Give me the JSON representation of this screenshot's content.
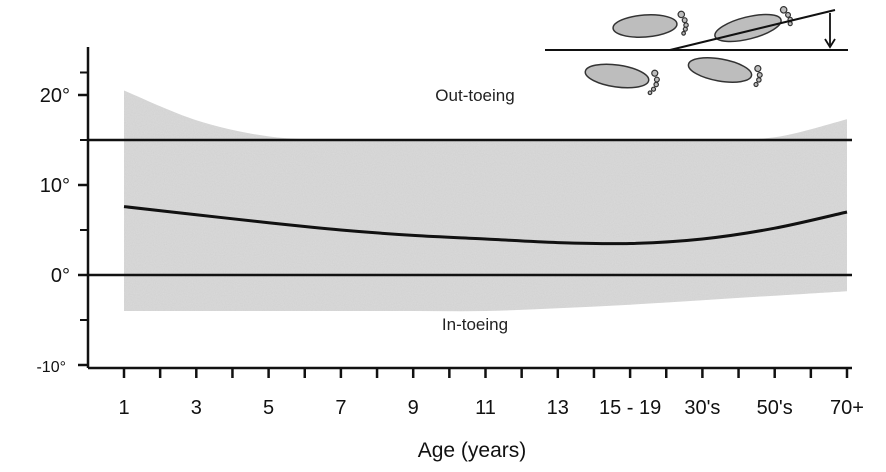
{
  "chart_data": {
    "type": "area",
    "xlabel": "Age (years)",
    "ylabel": "",
    "categories": [
      "1",
      "3",
      "5",
      "7",
      "9",
      "11",
      "13",
      "15 - 19",
      "30's",
      "50's",
      "70+"
    ],
    "y_ticks": [
      "20°",
      "10°",
      "0°",
      "-10°"
    ],
    "y_tick_values": [
      20,
      10,
      0,
      -10
    ],
    "ylim": [
      -10,
      25
    ],
    "reference_lines": [
      15,
      0
    ],
    "annotations": {
      "upper": "Out-toeing",
      "lower": "In-toeing"
    },
    "series": [
      {
        "values": [
          7.6,
          6.7,
          5.8,
          5.0,
          4.4,
          4.0,
          3.6,
          3.5,
          4.0,
          5.2,
          7.0
        ]
      }
    ],
    "range_band": {
      "upper": [
        20.5,
        17.2,
        15.4,
        15.0,
        15.0,
        15.0,
        15.0,
        15.0,
        15.0,
        15.3,
        17.3
      ],
      "lower": [
        -4.0,
        -4.0,
        -4.0,
        -4.0,
        -4.0,
        -4.0,
        -3.7,
        -3.3,
        -2.8,
        -2.3,
        -1.8
      ]
    },
    "grid": false,
    "legend": "none",
    "colors": {
      "band": "#dcdcdc",
      "line": "#111111",
      "axis": "#111111",
      "footprint": "#bdbdbd"
    }
  }
}
